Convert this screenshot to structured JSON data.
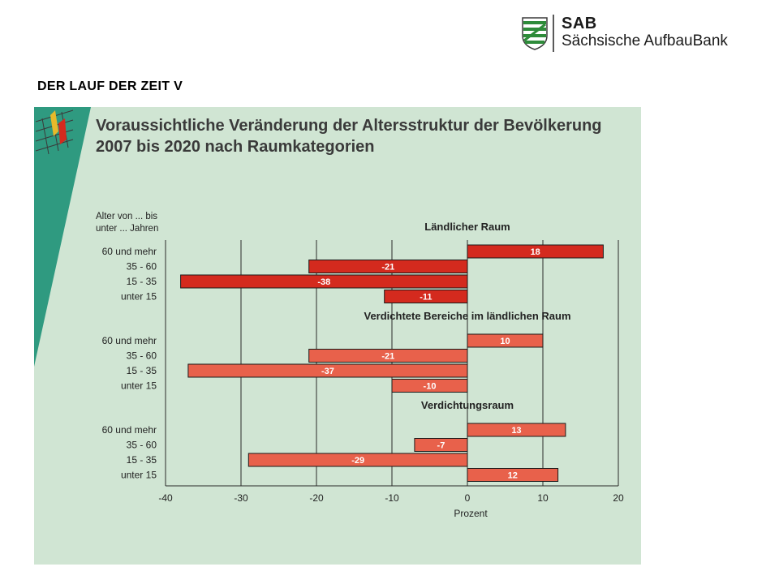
{
  "logo": {
    "abbr": "SAB",
    "name": "Sächsische AufbauBank"
  },
  "slide_title": "DER LAUF DER ZEIT V",
  "chart_data": {
    "type": "bar",
    "orientation": "horizontal",
    "title": "Voraussichtliche Veränderung der Altersstruktur der Bevölkerung 2007 bis 2020 nach Raumkategorien",
    "category_axis_title": "Alter von ... bis unter ... Jahren",
    "xlabel": "Prozent",
    "xlim": [
      -40,
      20
    ],
    "xticks": [
      -40,
      -30,
      -20,
      -10,
      0,
      10,
      20
    ],
    "grid": true,
    "groups": [
      {
        "name": "Ländlicher Raum",
        "color": "#d42a1e",
        "categories": [
          "60 und mehr",
          "35 - 60",
          "15 - 35",
          "unter 15"
        ],
        "values": [
          18,
          -21,
          -38,
          -11
        ]
      },
      {
        "name": "Verdichtete Bereiche im ländlichen Raum",
        "color": "#e8614b",
        "categories": [
          "60 und mehr",
          "35 - 60",
          "15 - 35",
          "unter 15"
        ],
        "values": [
          10,
          -21,
          -37,
          -10
        ]
      },
      {
        "name": "Verdichtungsraum",
        "color": "#e8614b",
        "categories": [
          "60 und mehr",
          "35 - 60",
          "15 - 35",
          "unter 15"
        ],
        "values": [
          13,
          -7,
          -29,
          12
        ]
      }
    ]
  }
}
